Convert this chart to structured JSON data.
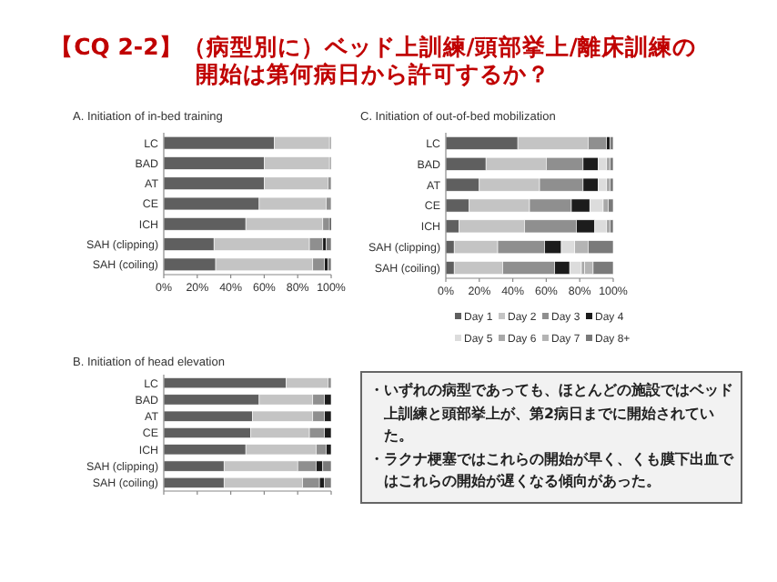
{
  "chart_data": [
    {
      "type": "bar",
      "orientation": "horizontal",
      "stacked": true,
      "title": "A. Initiation of in-bed training",
      "categories": [
        "LC",
        "BAD",
        "AT",
        "CE",
        "ICH",
        "SAH (clipping)",
        "SAH (coiling)"
      ],
      "xlim": [
        0,
        100
      ],
      "xticks": [
        {
          "value": 0,
          "label": "0%"
        },
        {
          "value": 20,
          "label": "20%"
        },
        {
          "value": 40,
          "label": "40%"
        },
        {
          "value": 60,
          "label": "60%"
        },
        {
          "value": 80,
          "label": "80%"
        },
        {
          "value": 100,
          "label": "100%"
        }
      ],
      "series": [
        {
          "color": "#5f5f5f",
          "values": [
            66,
            60,
            60,
            57,
            49,
            30,
            31
          ]
        },
        {
          "color": "#c4c4c4",
          "values": [
            33,
            39,
            38,
            40,
            46,
            57,
            58
          ]
        },
        {
          "color": "#8f8f8f",
          "values": [
            1,
            1,
            2,
            3,
            4,
            8,
            7
          ]
        },
        {
          "color": "#1c1c1c",
          "values": [
            0,
            0,
            0,
            0,
            1,
            2,
            2
          ]
        },
        {
          "color": "#dcdcdc",
          "values": [
            0,
            0,
            0,
            0,
            0,
            0,
            0
          ]
        },
        {
          "color": "#a8a8a8",
          "values": [
            0,
            0,
            0,
            0,
            0,
            0,
            0
          ]
        },
        {
          "color": "#b4b4b4",
          "values": [
            0,
            0,
            0,
            0,
            0,
            0,
            0
          ]
        },
        {
          "color": "#7a7a7a",
          "values": [
            0,
            0,
            0,
            0,
            0,
            3,
            2
          ]
        }
      ]
    },
    {
      "type": "bar",
      "orientation": "horizontal",
      "stacked": true,
      "title": "B. Initiation of head elevation",
      "tick_labels": "y",
      "categories": [
        "LC",
        "BAD",
        "AT",
        "CE",
        "ICH",
        "SAH (clipping)",
        "SAH (coiling)"
      ],
      "xlim": [
        0,
        100
      ],
      "xticks": [
        {
          "value": 0,
          "label": null
        },
        {
          "value": 20,
          "label": null
        },
        {
          "value": 40,
          "label": null
        },
        {
          "value": 60,
          "label": null
        },
        {
          "value": 80,
          "label": null
        },
        {
          "value": 100,
          "label": null
        }
      ],
      "series": [
        {
          "color": "#5f5f5f",
          "values": [
            73,
            57,
            53,
            52,
            49,
            36,
            36
          ]
        },
        {
          "color": "#c4c4c4",
          "values": [
            25,
            32,
            36,
            35,
            42,
            44,
            47
          ]
        },
        {
          "color": "#8f8f8f",
          "values": [
            2,
            7,
            7,
            9,
            6,
            11,
            10
          ]
        },
        {
          "color": "#1c1c1c",
          "values": [
            0,
            4,
            4,
            4,
            3,
            4,
            3
          ]
        },
        {
          "color": "#dcdcdc",
          "values": [
            0,
            0,
            0,
            0,
            0,
            0,
            0
          ]
        },
        {
          "color": "#a8a8a8",
          "values": [
            0,
            0,
            0,
            0,
            0,
            0,
            0
          ]
        },
        {
          "color": "#b4b4b4",
          "values": [
            0,
            0,
            0,
            0,
            0,
            0,
            0
          ]
        },
        {
          "color": "#7a7a7a",
          "values": [
            0,
            0,
            0,
            0,
            0,
            5,
            4
          ]
        }
      ]
    },
    {
      "type": "bar",
      "orientation": "horizontal",
      "stacked": true,
      "title": "C. Initiation of out-of-bed mobilization",
      "legend": "bottom",
      "categories": [
        "LC",
        "BAD",
        "AT",
        "CE",
        "ICH",
        "SAH (clipping)",
        "SAH (coiling)"
      ],
      "xlim": [
        0,
        100
      ],
      "xticks": [
        {
          "value": 0,
          "label": "0%"
        },
        {
          "value": 20,
          "label": "20%"
        },
        {
          "value": 40,
          "label": "40%"
        },
        {
          "value": 60,
          "label": "60%"
        },
        {
          "value": 80,
          "label": "80%"
        },
        {
          "value": 100,
          "label": "100%"
        }
      ],
      "series": [
        {
          "name": "Day 1",
          "color": "#5f5f5f",
          "values": [
            43,
            24,
            20,
            14,
            8,
            5,
            5
          ]
        },
        {
          "name": "Day 2",
          "color": "#c4c4c4",
          "values": [
            42,
            36,
            36,
            36,
            39,
            26,
            29
          ]
        },
        {
          "name": "Day 3",
          "color": "#8f8f8f",
          "values": [
            11,
            22,
            26,
            25,
            31,
            28,
            31
          ]
        },
        {
          "name": "Day 4",
          "color": "#1c1c1c",
          "values": [
            2,
            9,
            9,
            11,
            11,
            10,
            9
          ]
        },
        {
          "name": "Day 5",
          "color": "#dcdcdc",
          "values": [
            0,
            5,
            5,
            8,
            7,
            8,
            7
          ]
        },
        {
          "name": "Day 6",
          "color": "#a8a8a8",
          "values": [
            0,
            2,
            2,
            3,
            2,
            0,
            2
          ]
        },
        {
          "name": "Day 7",
          "color": "#b4b4b4",
          "values": [
            0,
            0,
            0,
            0,
            0,
            8,
            5
          ]
        },
        {
          "name": "Day 8+",
          "color": "#7a7a7a",
          "values": [
            2,
            2,
            2,
            3,
            2,
            15,
            12
          ]
        }
      ]
    },
    {
      "type": "other",
      "title": "【CQ 2-2】（病型別に）ベッド上訓練/頭部挙上/離床訓練の開始は第何病日から許可するか？",
      "annotations": [
        "・いずれの病型であっても、ほとんどの施設ではベッド上訓練と頭部挙上が、第2病日までに開始されていた。",
        "・ラクナ梗塞ではこれらの開始が早く、くも膜下出血ではこれらの開始が遅くなる傾向があった。"
      ]
    }
  ]
}
